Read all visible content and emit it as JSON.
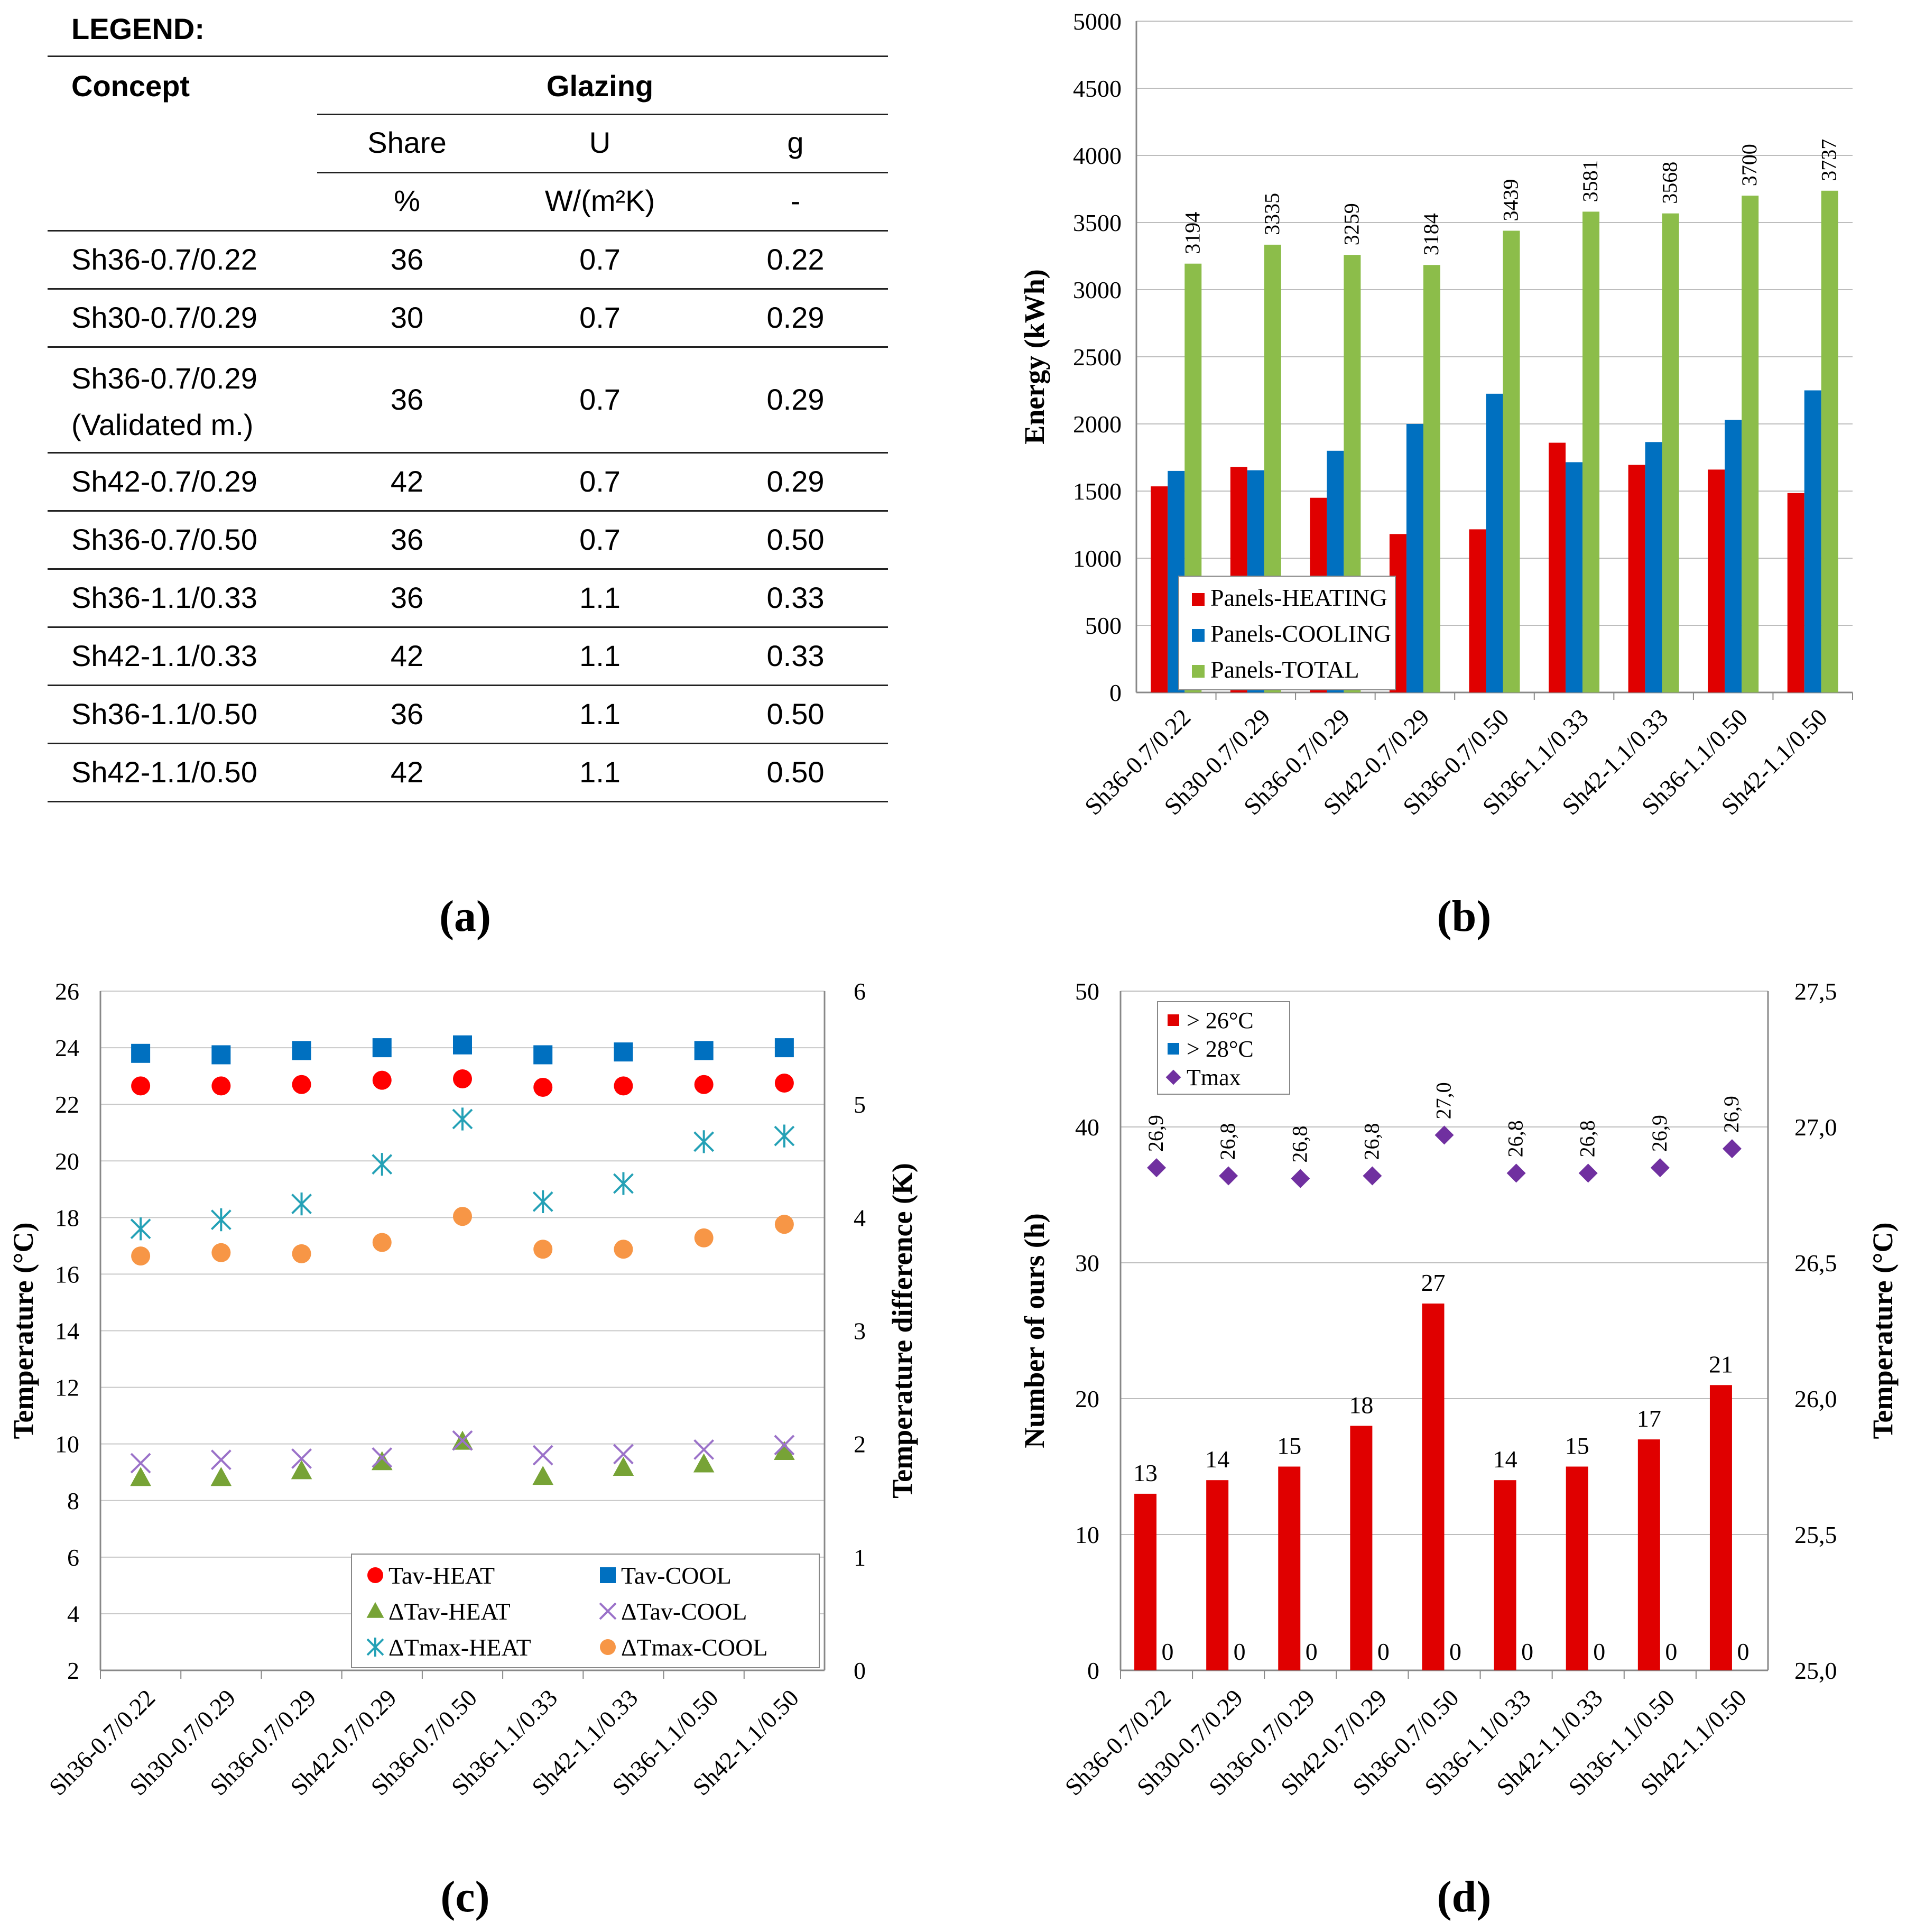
{
  "concepts": [
    "Sh36-0.7/0.22",
    "Sh30-0.7/0.29",
    "Sh36-0.7/0.29",
    "Sh42-0.7/0.29",
    "Sh36-0.7/0.50",
    "Sh36-1.1/0.33",
    "Sh42-1.1/0.33",
    "Sh36-1.1/0.50",
    "Sh42-1.1/0.50"
  ],
  "panel_a": {
    "legend_title": "LEGEND:",
    "concept_header": "Concept",
    "glazing_header": "Glazing",
    "columns": [
      "Share",
      "U",
      "g"
    ],
    "units": [
      "%",
      "W/(m²K)",
      "-"
    ],
    "rows": [
      {
        "concept": "Sh36-0.7/0.22",
        "share": "36",
        "u": "0.7",
        "g": "0.22"
      },
      {
        "concept": "Sh30-0.7/0.29",
        "share": "30",
        "u": "0.7",
        "g": "0.29"
      },
      {
        "concept": "Sh36-0.7/0.29",
        "concept2": "(Validated m.)",
        "share": "36",
        "u": "0.7",
        "g": "0.29"
      },
      {
        "concept": "Sh42-0.7/0.29",
        "share": "42",
        "u": "0.7",
        "g": "0.29"
      },
      {
        "concept": "Sh36-0.7/0.50",
        "share": "36",
        "u": "0.7",
        "g": "0.50"
      },
      {
        "concept": "Sh36-1.1/0.33",
        "share": "36",
        "u": "1.1",
        "g": "0.33"
      },
      {
        "concept": "Sh42-1.1/0.33",
        "share": "42",
        "u": "1.1",
        "g": "0.33"
      },
      {
        "concept": "Sh36-1.1/0.50",
        "share": "36",
        "u": "1.1",
        "g": "0.50"
      },
      {
        "concept": "Sh42-1.1/0.50",
        "share": "42",
        "u": "1.1",
        "g": "0.50"
      }
    ]
  },
  "captions": {
    "a": "(a)",
    "b": "(b)",
    "c": "(c)",
    "d": "(d)"
  },
  "chart_data": [
    {
      "id": "b",
      "type": "bar",
      "ylabel": "Energy (kWh)",
      "ylim": [
        0,
        5000
      ],
      "yticks": [
        0,
        500,
        1000,
        1500,
        2000,
        2500,
        3000,
        3500,
        4000,
        4500,
        5000
      ],
      "legend_position": "bottom-left",
      "categories": [
        "Sh36-0.7/0.22",
        "Sh30-0.7/0.29",
        "Sh36-0.7/0.29",
        "Sh42-0.7/0.29",
        "Sh36-0.7/0.50",
        "Sh36-1.1/0.33",
        "Sh42-1.1/0.33",
        "Sh36-1.1/0.50",
        "Sh42-1.1/0.50"
      ],
      "series": [
        {
          "name": "Panels-HEATING",
          "color": "#e00000",
          "values": [
            1535,
            1680,
            1450,
            1180,
            1215,
            1860,
            1695,
            1660,
            1485
          ]
        },
        {
          "name": "Panels-COOLING",
          "color": "#0070c0",
          "values": [
            1650,
            1655,
            1800,
            2000,
            2225,
            1715,
            1865,
            2030,
            2250
          ]
        },
        {
          "name": "Panels-TOTAL",
          "color": "#8cbd4a",
          "values": [
            3194,
            3335,
            3259,
            3184,
            3439,
            3581,
            3568,
            3700,
            3737
          ],
          "labels": [
            "3194",
            "3335",
            "3259",
            "3184",
            "3439",
            "3581",
            "3568",
            "3700",
            "3737"
          ]
        }
      ]
    },
    {
      "id": "c",
      "type": "scatter",
      "ylabel": "Temperature (°C)",
      "y2label": "Temperature difference (K)",
      "ylim": [
        2,
        26
      ],
      "yticks": [
        2,
        4,
        6,
        8,
        10,
        12,
        14,
        16,
        18,
        20,
        22,
        24,
        26
      ],
      "y2lim": [
        0,
        6
      ],
      "y2ticks": [
        0,
        1,
        2,
        3,
        4,
        5,
        6
      ],
      "legend_position": "bottom-right",
      "categories": [
        "Sh36-0.7/0.22",
        "Sh30-0.7/0.29",
        "Sh36-0.7/0.29",
        "Sh42-0.7/0.29",
        "Sh36-0.7/0.50",
        "Sh36-1.1/0.33",
        "Sh42-1.1/0.33",
        "Sh36-1.1/0.50",
        "Sh42-1.1/0.50"
      ],
      "series": [
        {
          "name": "Tav-HEAT",
          "axis": "left",
          "marker": "circle",
          "color": "#ff0000",
          "values": [
            22.65,
            22.65,
            22.7,
            22.85,
            22.9,
            22.6,
            22.65,
            22.7,
            22.75
          ]
        },
        {
          "name": "Tav-COOL",
          "axis": "left",
          "marker": "square",
          "color": "#0070c0",
          "values": [
            23.8,
            23.75,
            23.9,
            24.0,
            24.1,
            23.75,
            23.85,
            23.9,
            24.0
          ]
        },
        {
          "name": "ΔTav-HEAT",
          "axis": "right",
          "marker": "triangle",
          "color": "#77a336",
          "values": [
            1.7,
            1.7,
            1.76,
            1.84,
            2.02,
            1.71,
            1.79,
            1.82,
            1.93
          ]
        },
        {
          "name": "ΔTav-COOL",
          "axis": "right",
          "marker": "x",
          "color": "#9b72c9",
          "values": [
            1.83,
            1.86,
            1.87,
            1.88,
            2.03,
            1.9,
            1.91,
            1.95,
            1.99
          ]
        },
        {
          "name": "ΔTmax-HEAT",
          "axis": "right",
          "marker": "star",
          "color": "#24a1b6",
          "values": [
            3.9,
            3.98,
            4.12,
            4.47,
            4.87,
            4.14,
            4.3,
            4.67,
            4.72
          ]
        },
        {
          "name": "ΔTmax-COOL",
          "axis": "right",
          "marker": "circle",
          "color": "#f79646",
          "values": [
            3.66,
            3.69,
            3.68,
            3.78,
            4.01,
            3.72,
            3.72,
            3.82,
            3.94
          ]
        }
      ]
    },
    {
      "id": "d",
      "type": "bar",
      "ylabel": "Number of ours (h)",
      "y2label": "Temperature (°C)",
      "ylim": [
        0,
        50
      ],
      "yticks": [
        0,
        10,
        20,
        30,
        40,
        50
      ],
      "y2lim": [
        25.0,
        27.5
      ],
      "y2ticks": [
        "25,0",
        "25,5",
        "26,0",
        "26,5",
        "27,0",
        "27,5"
      ],
      "legend_position": "top-left",
      "categories": [
        "Sh36-0.7/0.22",
        "Sh30-0.7/0.29",
        "Sh36-0.7/0.29",
        "Sh42-0.7/0.29",
        "Sh36-0.7/0.50",
        "Sh36-1.1/0.33",
        "Sh42-1.1/0.33",
        "Sh36-1.1/0.50",
        "Sh42-1.1/0.50"
      ],
      "series": [
        {
          "name": "> 26°C",
          "color": "#e00000",
          "values": [
            13,
            14,
            15,
            18,
            27,
            14,
            15,
            17,
            21
          ],
          "labels": [
            "13",
            "14",
            "15",
            "18",
            "27",
            "14",
            "15",
            "17",
            "21"
          ]
        },
        {
          "name": "> 28°C",
          "color": "#0070c0",
          "values": [
            0,
            0,
            0,
            0,
            0,
            0,
            0,
            0,
            0
          ],
          "labels": [
            "0",
            "0",
            "0",
            "0",
            "0",
            "0",
            "0",
            "0",
            "0"
          ]
        },
        {
          "name": "Tmax",
          "axis": "right",
          "marker": "diamond",
          "color": "#7030a0",
          "values": [
            26.85,
            26.82,
            26.81,
            26.82,
            26.97,
            26.83,
            26.83,
            26.85,
            26.92
          ],
          "labels": [
            "26,9",
            "26,8",
            "26,8",
            "26,8",
            "27,0",
            "26,8",
            "26,8",
            "26,9",
            "26,9"
          ]
        }
      ]
    }
  ]
}
